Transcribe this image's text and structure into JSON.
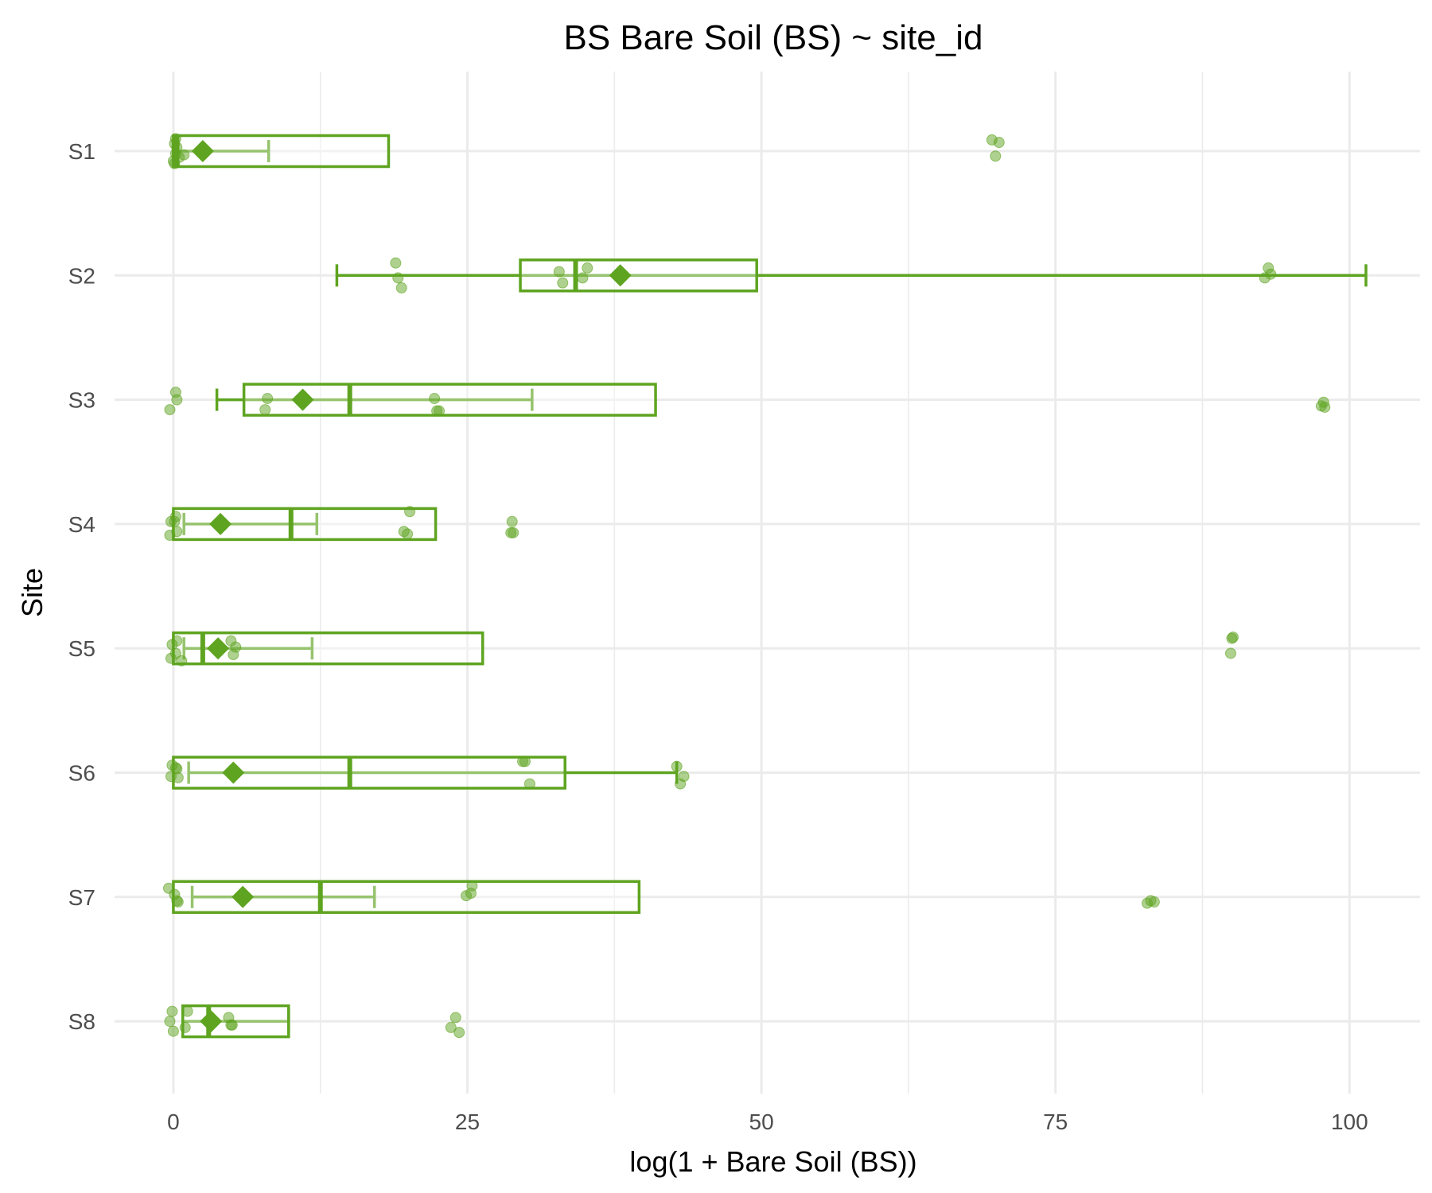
{
  "chart_data": {
    "type": "boxplot",
    "orientation": "horizontal",
    "title": "BS Bare Soil (BS) ~ site_id",
    "xlabel": "log(1 + Bare Soil (BS))",
    "ylabel": "Site",
    "xlim": [
      -5,
      106
    ],
    "xticks": [
      0,
      25,
      50,
      75,
      100
    ],
    "xtick_labels": [
      "0",
      "25",
      "50",
      "75",
      "100"
    ],
    "grid": true,
    "color": "#5ea420",
    "categories": [
      "S1",
      "S2",
      "S3",
      "S4",
      "S5",
      "S6",
      "S7",
      "S8"
    ],
    "series": [
      {
        "category": "S1",
        "box_low": 0,
        "box_high": 18.3,
        "median": 0.3,
        "mean": 2.5,
        "whisker_low": 0,
        "whisker_high": 8.1,
        "points": [
          [
            0,
            0.08
          ],
          [
            0.1,
            -0.06
          ],
          [
            0.2,
            0.02
          ],
          [
            0.3,
            -0.03
          ],
          [
            0.5,
            0.05
          ],
          [
            0.9,
            0.03
          ],
          [
            0.1,
            0.1
          ],
          [
            0.2,
            -0.1
          ],
          [
            69.6,
            -0.09
          ],
          [
            69.9,
            0.04
          ],
          [
            70.2,
            -0.07
          ]
        ]
      },
      {
        "category": "S2",
        "box_low": 29.5,
        "box_high": 49.6,
        "median": 34.2,
        "mean": 38.0,
        "whisker_low": 13.9,
        "whisker_high": 101.4,
        "points": [
          [
            18.9,
            -0.1
          ],
          [
            19.1,
            0.02
          ],
          [
            19.4,
            0.1
          ],
          [
            32.8,
            -0.03
          ],
          [
            33.1,
            0.06
          ],
          [
            34.8,
            0.02
          ],
          [
            35.2,
            -0.06
          ],
          [
            92.8,
            0.02
          ],
          [
            93.1,
            -0.06
          ],
          [
            93.3,
            -0.01
          ]
        ]
      },
      {
        "category": "S3",
        "box_low": 6.0,
        "box_high": 41.0,
        "median": 15.0,
        "mean": 11.0,
        "whisker_low": 3.7,
        "whisker_high": 30.5,
        "points": [
          [
            -0.3,
            0.08
          ],
          [
            0.3,
            0.0
          ],
          [
            0.2,
            -0.06
          ],
          [
            7.8,
            0.08
          ],
          [
            8.0,
            -0.01
          ],
          [
            22.2,
            -0.01
          ],
          [
            22.4,
            0.09
          ],
          [
            22.6,
            0.09
          ],
          [
            97.6,
            0.05
          ],
          [
            97.8,
            0.02
          ],
          [
            97.9,
            0.06
          ]
        ]
      },
      {
        "category": "S4",
        "box_low": 0,
        "box_high": 22.3,
        "median": 10.0,
        "mean": 4.0,
        "whisker_low": 0.9,
        "whisker_high": 12.2,
        "points": [
          [
            -0.3,
            0.09
          ],
          [
            0.1,
            -0.02
          ],
          [
            0.3,
            0.06
          ],
          [
            -0.2,
            -0.02
          ],
          [
            0.2,
            -0.06
          ],
          [
            19.6,
            0.06
          ],
          [
            19.9,
            0.08
          ],
          [
            20.1,
            -0.1
          ],
          [
            28.7,
            0.07
          ],
          [
            28.9,
            0.07
          ],
          [
            28.8,
            -0.02
          ]
        ]
      },
      {
        "category": "S5",
        "box_low": 0,
        "box_high": 26.3,
        "median": 2.5,
        "mean": 3.8,
        "whisker_low": 0.9,
        "whisker_high": 11.8,
        "points": [
          [
            -0.2,
            0.08
          ],
          [
            0.2,
            0.04
          ],
          [
            -0.1,
            -0.03
          ],
          [
            0.3,
            -0.06
          ],
          [
            0.7,
            0.1
          ],
          [
            4.9,
            -0.06
          ],
          [
            5.1,
            0.05
          ],
          [
            5.3,
            -0.01
          ],
          [
            89.9,
            0.04
          ],
          [
            90.0,
            -0.08
          ],
          [
            90.1,
            -0.09
          ]
        ]
      },
      {
        "category": "S6",
        "box_low": 0,
        "box_high": 33.3,
        "median": 15.0,
        "mean": 5.1,
        "whisker_low": 1.3,
        "whisker_high": 42.8,
        "points": [
          [
            -0.2,
            0.03
          ],
          [
            0.2,
            -0.04
          ],
          [
            0.3,
            -0.03
          ],
          [
            -0.1,
            -0.06
          ],
          [
            0.4,
            0.04
          ],
          [
            29.7,
            -0.09
          ],
          [
            29.9,
            -0.09
          ],
          [
            30.3,
            0.09
          ],
          [
            42.8,
            -0.05
          ],
          [
            43.1,
            0.09
          ],
          [
            43.4,
            0.03
          ]
        ]
      },
      {
        "category": "S7",
        "box_low": 0,
        "box_high": 39.6,
        "median": 12.5,
        "mean": 5.9,
        "whisker_low": 1.6,
        "whisker_high": 17.1,
        "points": [
          [
            -0.4,
            -0.07
          ],
          [
            0.1,
            -0.02
          ],
          [
            0.3,
            0.03
          ],
          [
            0.4,
            0.04
          ],
          [
            24.9,
            -0.01
          ],
          [
            25.3,
            -0.03
          ],
          [
            25.4,
            -0.09
          ],
          [
            82.8,
            0.05
          ],
          [
            83.1,
            0.03
          ],
          [
            83.4,
            0.04
          ]
        ]
      },
      {
        "category": "S8",
        "box_low": 0.8,
        "box_high": 9.8,
        "median": 3.0,
        "mean": 3.2,
        "whisker_low": 0.8,
        "whisker_high": 9.8,
        "points": [
          [
            -0.3,
            0.0
          ],
          [
            0.0,
            0.08
          ],
          [
            -0.1,
            -0.08
          ],
          [
            1.0,
            0.05
          ],
          [
            1.2,
            -0.08
          ],
          [
            4.7,
            -0.03
          ],
          [
            4.9,
            0.03
          ],
          [
            5.0,
            0.03
          ],
          [
            23.6,
            0.05
          ],
          [
            24.0,
            -0.03
          ],
          [
            24.3,
            0.09
          ]
        ]
      }
    ]
  }
}
